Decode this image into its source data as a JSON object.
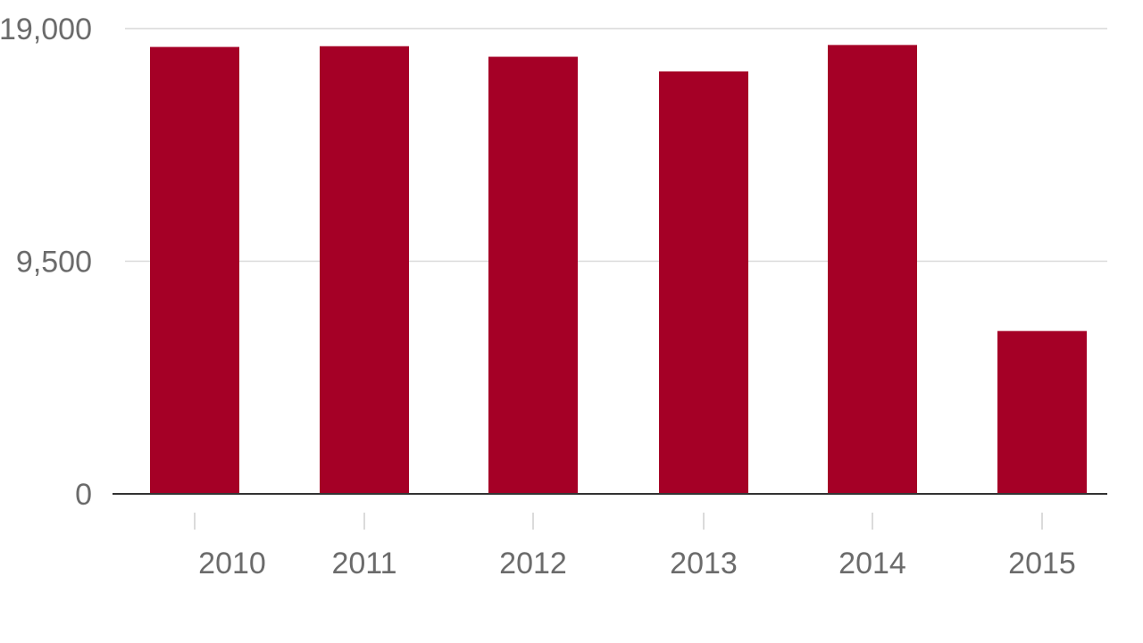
{
  "chart_data": {
    "type": "bar",
    "title": "",
    "xlabel": "",
    "ylabel": "",
    "categories": [
      "2010",
      "2011",
      "2012",
      "2013",
      "2014",
      "2015"
    ],
    "values": [
      18250,
      18280,
      17850,
      17250,
      18330,
      6650
    ],
    "ylim": [
      0,
      19000
    ],
    "yticks": [
      0,
      9500,
      19000
    ],
    "ytick_labels": [
      "0",
      "9,500",
      "19,000"
    ],
    "grid": true,
    "legend": "none",
    "bar_color": "#a50026",
    "grid_color": "#d9d9d9",
    "axis_color": "#333333",
    "label_color": "#6b6b6b"
  }
}
